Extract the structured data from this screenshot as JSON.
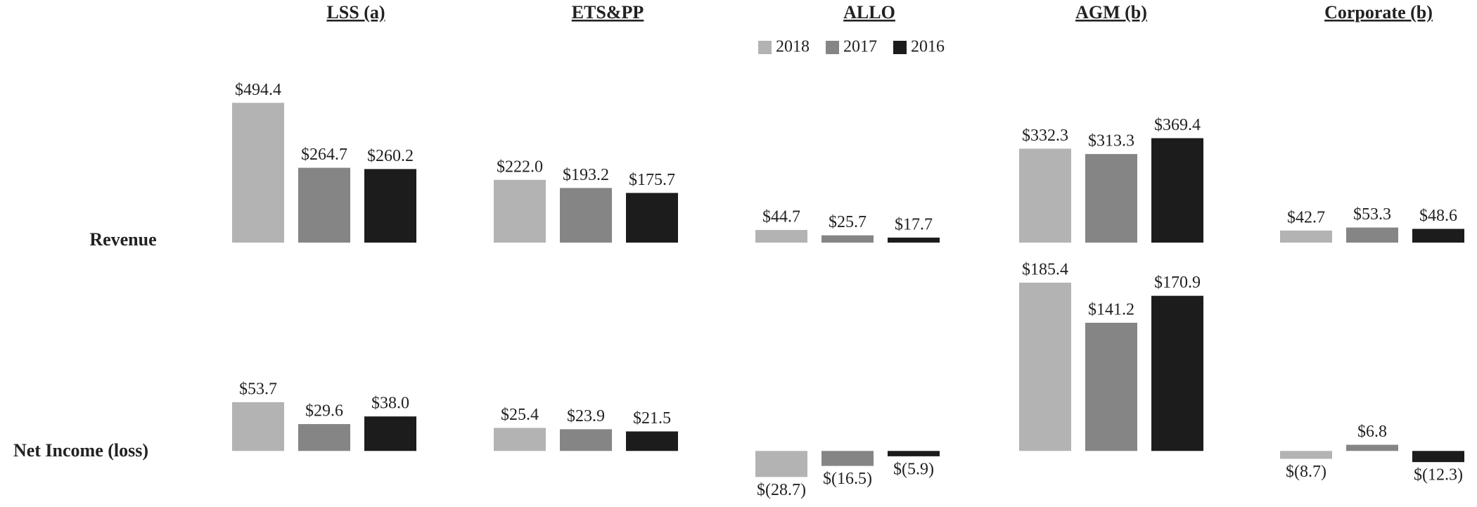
{
  "chart_data": {
    "type": "bar",
    "columns": [
      "LSS (a)",
      "ETS&PP",
      "ALLO",
      "AGM (b)",
      "Corporate (b)"
    ],
    "series": [
      {
        "name": "2018",
        "color": "#b3b3b3"
      },
      {
        "name": "2017",
        "color": "#858585"
      },
      {
        "name": "2016",
        "color": "#1c1c1c"
      }
    ],
    "rows": [
      {
        "label": "Revenue",
        "ylim": [
          0,
          500
        ],
        "values": [
          [
            494.4,
            264.7,
            260.2
          ],
          [
            222.0,
            193.2,
            175.7
          ],
          [
            44.7,
            25.7,
            17.7
          ],
          [
            332.3,
            313.3,
            369.4
          ],
          [
            42.7,
            53.3,
            48.6
          ]
        ],
        "value_labels": [
          [
            "$494.4",
            "$264.7",
            "$260.2"
          ],
          [
            "$222.0",
            "$193.2",
            "$175.7"
          ],
          [
            "$44.7",
            "$25.7",
            "$17.7"
          ],
          [
            "$332.3",
            "$313.3",
            "$369.4"
          ],
          [
            "$42.7",
            "$53.3",
            "$48.6"
          ]
        ]
      },
      {
        "label": "Net Income (loss)",
        "ylim": [
          -30,
          190
        ],
        "values": [
          [
            53.7,
            29.6,
            38.0
          ],
          [
            25.4,
            23.9,
            21.5
          ],
          [
            -28.7,
            -16.5,
            -5.9
          ],
          [
            185.4,
            141.2,
            170.9
          ],
          [
            -8.7,
            6.8,
            -12.3
          ]
        ],
        "value_labels": [
          [
            "$53.7",
            "$29.6",
            "$38.0"
          ],
          [
            "$25.4",
            "$23.9",
            "$21.5"
          ],
          [
            "$(28.7)",
            "$(16.5)",
            "$(5.9)"
          ],
          [
            "$185.4",
            "$141.2",
            "$170.9"
          ],
          [
            "$(8.7)",
            "$6.8",
            "$(12.3)"
          ]
        ]
      }
    ]
  }
}
